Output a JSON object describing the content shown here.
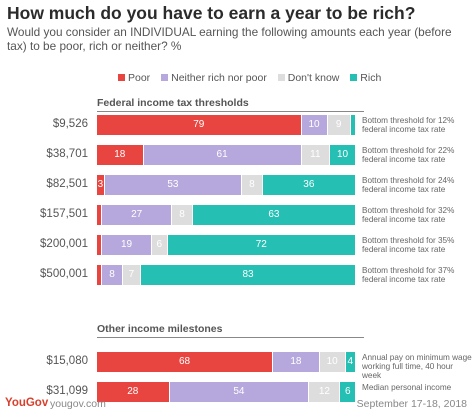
{
  "title": "How much do you have to earn a year to be rich?",
  "subtitle": "Would you consider an INDIVIDUAL earning the following amounts each year (before tax) to be poor, rich or neither? %",
  "colors": {
    "Poor": "#e84541",
    "Neither rich nor poor": "#b6a8dc",
    "Don't know": "#dddddd",
    "Rich": "#25c0b3"
  },
  "chart_data": {
    "type": "bar",
    "stacked": true,
    "orientation": "horizontal",
    "xlim": [
      0,
      100
    ],
    "legend": [
      "Poor",
      "Neither rich nor poor",
      "Don't know",
      "Rich"
    ],
    "legend_position": "top",
    "sections": [
      {
        "title": "Federal income tax thresholds",
        "rows": [
          {
            "label": "$9,526",
            "values": [
              79,
              10,
              9,
              2
            ],
            "note": "Bottom threshold for 12% federal income tax rate"
          },
          {
            "label": "$38,701",
            "values": [
              18,
              61,
              11,
              10
            ],
            "note": "Bottom threshold for 22% federal income tax rate"
          },
          {
            "label": "$82,501",
            "values": [
              3,
              53,
              8,
              36
            ],
            "note": "Bottom threshold for 24% federal income tax rate"
          },
          {
            "label": "$157,501",
            "values": [
              2,
              27,
              8,
              63
            ],
            "note": "Bottom threshold for 32% federal income tax rate"
          },
          {
            "label": "$200,001",
            "values": [
              2,
              19,
              6,
              72
            ],
            "note": "Bottom threshold for 35% federal income tax rate"
          },
          {
            "label": "$500,001",
            "values": [
              2,
              8,
              7,
              83
            ],
            "note": "Bottom threshold for 37% federal income tax rate"
          }
        ]
      },
      {
        "title": "Other income milestones",
        "rows": [
          {
            "label": "$15,080",
            "values": [
              68,
              18,
              10,
              4
            ],
            "note": "Annual pay on minimum wage working full time, 40 hour week"
          },
          {
            "label": "$31,099",
            "values": [
              28,
              54,
              12,
              6
            ],
            "note": "Median personal income"
          }
        ]
      }
    ]
  },
  "footer": {
    "brand": "YouGov",
    "url": "yougov.com",
    "date": "September 17-18, 2018"
  }
}
